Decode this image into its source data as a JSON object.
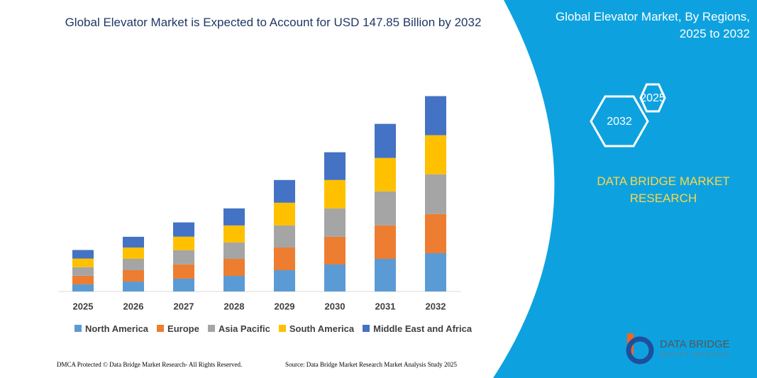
{
  "chart_data": {
    "type": "stacked_bar",
    "title": "Global Elevator Market is Expected to Account for USD 147.85 Billion by 2032",
    "categories": [
      "2025",
      "2026",
      "2027",
      "2028",
      "2029",
      "2030",
      "2031",
      "2032"
    ],
    "series": [
      {
        "name": "North America",
        "color": "#5b9bd5",
        "values": [
          5.4,
          7.5,
          9.7,
          11.8,
          16.1,
          20.4,
          24.7,
          29.0
        ]
      },
      {
        "name": "Europe",
        "color": "#ed7d31",
        "values": [
          6.5,
          8.6,
          10.8,
          12.9,
          17.2,
          21.0,
          25.3,
          29.6
        ]
      },
      {
        "name": "Asia Pacific",
        "color": "#a5a5a5",
        "values": [
          6.5,
          8.6,
          10.8,
          12.4,
          16.7,
          21.5,
          25.8,
          30.1
        ]
      },
      {
        "name": "South America",
        "color": "#ffc000",
        "values": [
          6.5,
          8.6,
          10.2,
          12.9,
          17.2,
          21.5,
          25.3,
          29.6
        ]
      },
      {
        "name": "Middle East and Africa",
        "color": "#4472c4",
        "values": [
          6.5,
          8.1,
          10.8,
          12.9,
          17.2,
          21.0,
          25.8,
          29.6
        ]
      }
    ],
    "ylim": [
      0,
      160
    ]
  },
  "panel": {
    "title": "Global Elevator Market, By Regions, 2025 to 2032",
    "hexagons": [
      "2025",
      "2032"
    ],
    "brand": "DATA BRIDGE MARKET RESEARCH",
    "logo": "DATA BRIDGE",
    "logo_sub": "MARKET RESEARCH"
  },
  "footer": {
    "left": "DMCA Protected © Data Bridge Market Research- All Rights Reserved.",
    "right": "Source: Data Bridge Market Research Market Analysis Study 2025"
  }
}
